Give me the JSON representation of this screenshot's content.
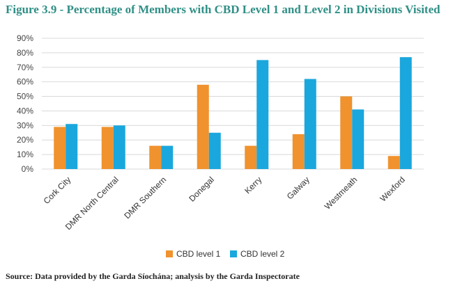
{
  "figure": {
    "title": "Figure 3.9 - Percentage of Members with CBD Level 1 and Level 2 in Divisions Visited",
    "source": "Source: Data provided by the Garda Síochána; analysis by the Garda Inspectorate"
  },
  "chart_data": {
    "type": "bar",
    "title": "Figure 3.9 - Percentage of Members with CBD Level 1 and Level 2 in Divisions Visited",
    "xlabel": "",
    "ylabel": "",
    "ylim": [
      0,
      90
    ],
    "yticks": [
      "0%",
      "10%",
      "20%",
      "30%",
      "40%",
      "50%",
      "60%",
      "70%",
      "80%",
      "90%"
    ],
    "grid": true,
    "legend_position": "bottom",
    "categories": [
      "Cork City",
      "DMR North Central",
      "DMR Southern",
      "Donegal",
      "Kerry",
      "Galway",
      "Westmeath",
      "Wexford"
    ],
    "series": [
      {
        "name": "CBD level 1",
        "color": "#f0922e",
        "values": [
          29,
          29,
          16,
          58,
          16,
          24,
          50,
          9
        ]
      },
      {
        "name": "CBD level 2",
        "color": "#1aa7dd",
        "values": [
          31,
          30,
          16,
          25,
          75,
          62,
          41,
          77
        ]
      }
    ]
  }
}
